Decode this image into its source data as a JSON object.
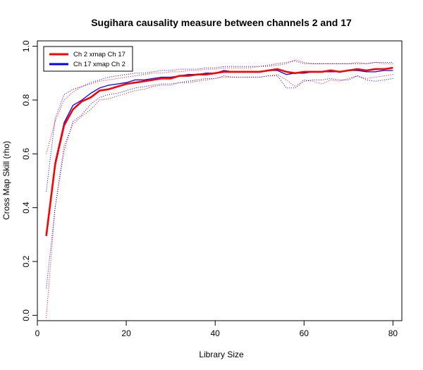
{
  "chart_data": {
    "type": "line",
    "title": "Sugihara causality measure between channels  2 and 17",
    "xlabel": "Library Size",
    "ylabel": "Cross Map Skill (rho)",
    "xlim": [
      0,
      82
    ],
    "ylim": [
      -0.02,
      1.02
    ],
    "xticks": [
      0,
      20,
      40,
      60,
      80
    ],
    "yticks": [
      0.0,
      0.2,
      0.4,
      0.6,
      0.8,
      1.0
    ],
    "xtick_labels": [
      "0",
      "20",
      "40",
      "60",
      "80"
    ],
    "ytick_labels": [
      "0.0",
      "0.2",
      "0.4",
      "0.6",
      "0.8",
      "1.0"
    ],
    "legend_position": "top-left",
    "grid": false,
    "x": [
      2,
      4,
      6,
      8,
      10,
      12,
      14,
      16,
      18,
      20,
      22,
      24,
      26,
      28,
      30,
      32,
      34,
      36,
      38,
      40,
      42,
      44,
      46,
      48,
      50,
      52,
      54,
      56,
      58,
      60,
      62,
      64,
      66,
      68,
      70,
      72,
      74,
      76,
      78,
      80
    ],
    "series": [
      {
        "name": "Ch 2 xmap Ch 17",
        "color": "#ff0000",
        "values": [
          0.295,
          0.56,
          0.705,
          0.765,
          0.795,
          0.81,
          0.835,
          0.84,
          0.85,
          0.86,
          0.865,
          0.87,
          0.875,
          0.88,
          0.88,
          0.89,
          0.89,
          0.895,
          0.895,
          0.9,
          0.905,
          0.905,
          0.905,
          0.905,
          0.905,
          0.91,
          0.915,
          0.905,
          0.9,
          0.905,
          0.905,
          0.905,
          0.91,
          0.905,
          0.91,
          0.915,
          0.91,
          0.915,
          0.915,
          0.92
        ],
        "upper": [
          0.6,
          0.72,
          0.8,
          0.83,
          0.85,
          0.86,
          0.87,
          0.875,
          0.88,
          0.885,
          0.89,
          0.895,
          0.9,
          0.9,
          0.905,
          0.905,
          0.91,
          0.91,
          0.915,
          0.915,
          0.92,
          0.92,
          0.92,
          0.92,
          0.925,
          0.925,
          0.93,
          0.935,
          0.95,
          0.94,
          0.935,
          0.935,
          0.935,
          0.935,
          0.935,
          0.94,
          0.935,
          0.94,
          0.935,
          0.935
        ],
        "lower": [
          -0.01,
          0.4,
          0.63,
          0.71,
          0.74,
          0.765,
          0.8,
          0.805,
          0.815,
          0.825,
          0.835,
          0.84,
          0.85,
          0.855,
          0.855,
          0.865,
          0.865,
          0.87,
          0.875,
          0.88,
          0.885,
          0.885,
          0.885,
          0.885,
          0.885,
          0.89,
          0.895,
          0.875,
          0.85,
          0.875,
          0.87,
          0.86,
          0.875,
          0.87,
          0.88,
          0.89,
          0.88,
          0.885,
          0.89,
          0.895
        ]
      },
      {
        "name": "Ch 17  xmap Ch 2",
        "color": "#0000ff",
        "values": [
          0.3,
          0.57,
          0.715,
          0.78,
          0.8,
          0.825,
          0.845,
          0.855,
          0.86,
          0.865,
          0.875,
          0.875,
          0.88,
          0.885,
          0.885,
          0.89,
          0.895,
          0.895,
          0.9,
          0.9,
          0.91,
          0.905,
          0.905,
          0.905,
          0.905,
          0.91,
          0.91,
          0.895,
          0.9,
          0.9,
          0.905,
          0.905,
          0.905,
          0.905,
          0.91,
          0.91,
          0.905,
          0.905,
          0.91,
          0.91
        ],
        "upper": [
          0.46,
          0.73,
          0.82,
          0.84,
          0.85,
          0.865,
          0.875,
          0.885,
          0.89,
          0.895,
          0.9,
          0.9,
          0.905,
          0.91,
          0.91,
          0.915,
          0.915,
          0.915,
          0.92,
          0.92,
          0.925,
          0.925,
          0.925,
          0.925,
          0.925,
          0.93,
          0.935,
          0.94,
          0.945,
          0.935,
          0.935,
          0.935,
          0.935,
          0.935,
          0.935,
          0.935,
          0.935,
          0.94,
          0.94,
          0.94
        ],
        "lower": [
          0.1,
          0.4,
          0.61,
          0.72,
          0.745,
          0.785,
          0.81,
          0.82,
          0.825,
          0.835,
          0.845,
          0.85,
          0.855,
          0.86,
          0.86,
          0.865,
          0.87,
          0.875,
          0.88,
          0.88,
          0.89,
          0.885,
          0.885,
          0.885,
          0.885,
          0.89,
          0.89,
          0.845,
          0.845,
          0.87,
          0.875,
          0.875,
          0.88,
          0.875,
          0.875,
          0.89,
          0.875,
          0.87,
          0.875,
          0.88
        ]
      }
    ]
  }
}
